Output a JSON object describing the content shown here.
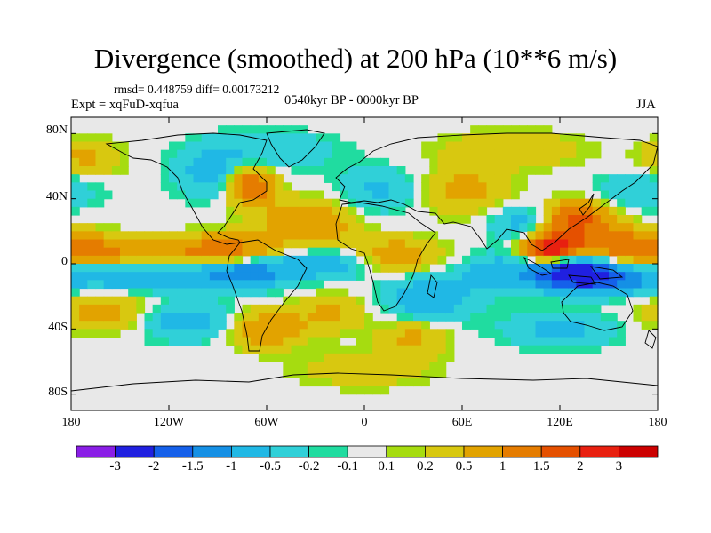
{
  "figure": {
    "title": "Divergence (smoothed) at 200 hPa (10**6 m/s)",
    "stats": "rmsd= 0.448759  diff= 0.00173212",
    "experiment": "Expt = xqFuD-xqfua",
    "period": "0540kyr BP - 0000kyr BP",
    "season": "JJA"
  },
  "axes": {
    "lat_ticks": [
      "80N",
      "40N",
      "0",
      "40S",
      "80S"
    ],
    "lon_ticks": [
      "180",
      "120W",
      "60W",
      "0",
      "60E",
      "120E",
      "180"
    ]
  },
  "colorbar": {
    "labels": [
      "-3",
      "-2",
      "-1.5",
      "-1",
      "-0.5",
      "-0.2",
      "-0.1",
      "0.1",
      "0.2",
      "0.5",
      "1",
      "1.5",
      "2",
      "3"
    ],
    "colors": [
      "#8a1ee6",
      "#2020e0",
      "#1560ea",
      "#1590e5",
      "#20b8e5",
      "#30d0d8",
      "#20dca0",
      "#e8e8e8",
      "#a6dc10",
      "#d8c810",
      "#e2a300",
      "#e57c00",
      "#e55000",
      "#e82010",
      "#cc0000"
    ]
  },
  "chart_data": {
    "type": "heatmap",
    "title": "Divergence (smoothed) at 200 hPa (10**6 m/s)",
    "variable": "200 hPa divergence difference (smoothed)",
    "units": "10**6 m/s",
    "xlabel": "",
    "ylabel": "",
    "xlim": [
      -180,
      180
    ],
    "ylim": [
      -90,
      90
    ],
    "contour_levels": [
      -3,
      -2,
      -1.5,
      -1,
      -0.5,
      -0.2,
      -0.1,
      0.1,
      0.2,
      0.5,
      1,
      1.5,
      2,
      3
    ],
    "features": [
      {
        "lon": 125,
        "lat": -5,
        "value": -2.5,
        "spread_lon": 18,
        "spread_lat": 7
      },
      {
        "lon": 150,
        "lat": -10,
        "value": -1.2,
        "spread_lon": 20,
        "spread_lat": 6
      },
      {
        "lon": 115,
        "lat": 10,
        "value": 2.5,
        "spread_lon": 12,
        "spread_lat": 7
      },
      {
        "lon": 130,
        "lat": 28,
        "value": 1.8,
        "spread_lon": 15,
        "spread_lat": 7
      },
      {
        "lon": 160,
        "lat": 12,
        "value": 1.2,
        "spread_lon": 25,
        "spread_lat": 7
      },
      {
        "lon": 100,
        "lat": 25,
        "value": -0.8,
        "spread_lon": 15,
        "spread_lat": 8
      },
      {
        "lon": -150,
        "lat": 8,
        "value": 0.9,
        "spread_lon": 35,
        "spread_lat": 6
      },
      {
        "lon": -140,
        "lat": -8,
        "value": -0.8,
        "spread_lon": 35,
        "spread_lat": 6
      },
      {
        "lon": -85,
        "lat": 8,
        "value": 1.3,
        "spread_lon": 20,
        "spread_lat": 7
      },
      {
        "lon": -75,
        "lat": -5,
        "value": -1.4,
        "spread_lon": 20,
        "spread_lat": 7
      },
      {
        "lon": -70,
        "lat": 48,
        "value": 1.6,
        "spread_lon": 10,
        "spread_lat": 8
      },
      {
        "lon": -95,
        "lat": 55,
        "value": -0.7,
        "spread_lon": 15,
        "spread_lat": 10
      },
      {
        "lon": -35,
        "lat": 25,
        "value": 1.0,
        "spread_lon": 20,
        "spread_lat": 10
      },
      {
        "lon": -25,
        "lat": 0,
        "value": -0.9,
        "spread_lon": 20,
        "spread_lat": 6
      },
      {
        "lon": 20,
        "lat": 5,
        "value": 0.8,
        "spread_lon": 20,
        "spread_lat": 8
      },
      {
        "lon": 40,
        "lat": -20,
        "value": -0.9,
        "spread_lon": 20,
        "spread_lat": 10
      },
      {
        "lon": 10,
        "lat": 45,
        "value": -0.6,
        "spread_lon": 20,
        "spread_lat": 10
      },
      {
        "lon": 60,
        "lat": 45,
        "value": 0.7,
        "spread_lon": 20,
        "spread_lat": 10
      },
      {
        "lon": -160,
        "lat": -30,
        "value": 0.7,
        "spread_lon": 20,
        "spread_lat": 8
      },
      {
        "lon": -110,
        "lat": -35,
        "value": -0.8,
        "spread_lon": 20,
        "spread_lat": 8
      },
      {
        "lon": -60,
        "lat": -40,
        "value": 1.0,
        "spread_lon": 15,
        "spread_lat": 8
      },
      {
        "lon": 120,
        "lat": -40,
        "value": -0.6,
        "spread_lon": 25,
        "spread_lat": 8
      },
      {
        "lon": 30,
        "lat": -45,
        "value": 0.6,
        "spread_lon": 15,
        "spread_lat": 8
      },
      {
        "lon": 0,
        "lat": -65,
        "value": 0.4,
        "spread_lon": 30,
        "spread_lat": 8
      },
      {
        "lon": -60,
        "lat": 70,
        "value": -0.5,
        "spread_lon": 30,
        "spread_lat": 8
      },
      {
        "lon": 90,
        "lat": 70,
        "value": 0.5,
        "spread_lon": 30,
        "spread_lat": 8
      },
      {
        "lon": 170,
        "lat": 45,
        "value": -0.5,
        "spread_lon": 20,
        "spread_lat": 8
      },
      {
        "lon": -170,
        "lat": 65,
        "value": 0.6,
        "spread_lon": 15,
        "spread_lat": 8
      },
      {
        "lon": 80,
        "lat": -5,
        "value": -0.7,
        "spread_lon": 15,
        "spread_lat": 8
      },
      {
        "lon": -20,
        "lat": -30,
        "value": 0.6,
        "spread_lon": 15,
        "spread_lat": 8
      }
    ]
  }
}
